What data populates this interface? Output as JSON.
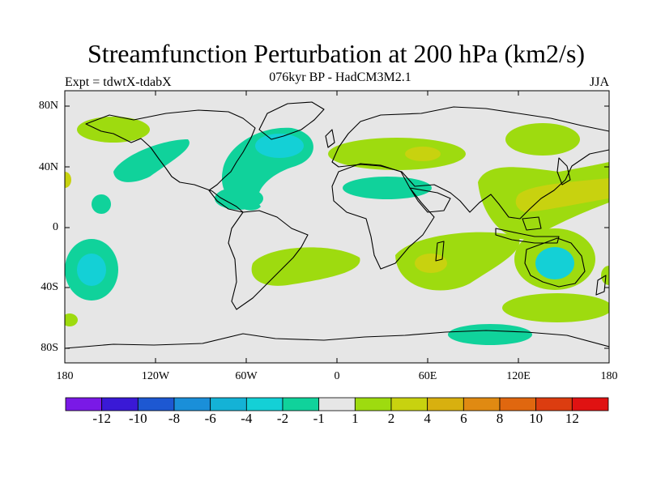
{
  "title": "Streamfunction Perturbation at 200 hPa (km2/s)",
  "subtitle_left": "Expt = tdwtX-tdabX",
  "subtitle_center": "076kyr BP - HadCM3M2.1",
  "subtitle_right": "JJA",
  "lat_labels": [
    "80N",
    "40N",
    "0",
    "40S",
    "80S"
  ],
  "lon_labels": [
    "180",
    "120W",
    "60W",
    "0",
    "60E",
    "120E",
    "180"
  ],
  "colorbar": {
    "colors": [
      "#7a19e6",
      "#3a19d6",
      "#1d58d2",
      "#1a8fd9",
      "#14b2d6",
      "#14d0d6",
      "#10d29b",
      "#e6e6e6",
      "#9edb0f",
      "#c8d20f",
      "#d8b00f",
      "#e08a12",
      "#e0670f",
      "#dc3d10",
      "#e01212"
    ],
    "labels": [
      "-12",
      "-10",
      "-8",
      "-6",
      "-4",
      "-2",
      "-1",
      "1",
      "2",
      "4",
      "6",
      "8",
      "10",
      "12"
    ]
  },
  "colors": {
    "background_field": "#e6e6e6",
    "neg_1_2": "#10d29b",
    "neg_2_4": "#14d0d6",
    "pos_1_2": "#9edb0f",
    "pos_2_4": "#c8d20f"
  }
}
